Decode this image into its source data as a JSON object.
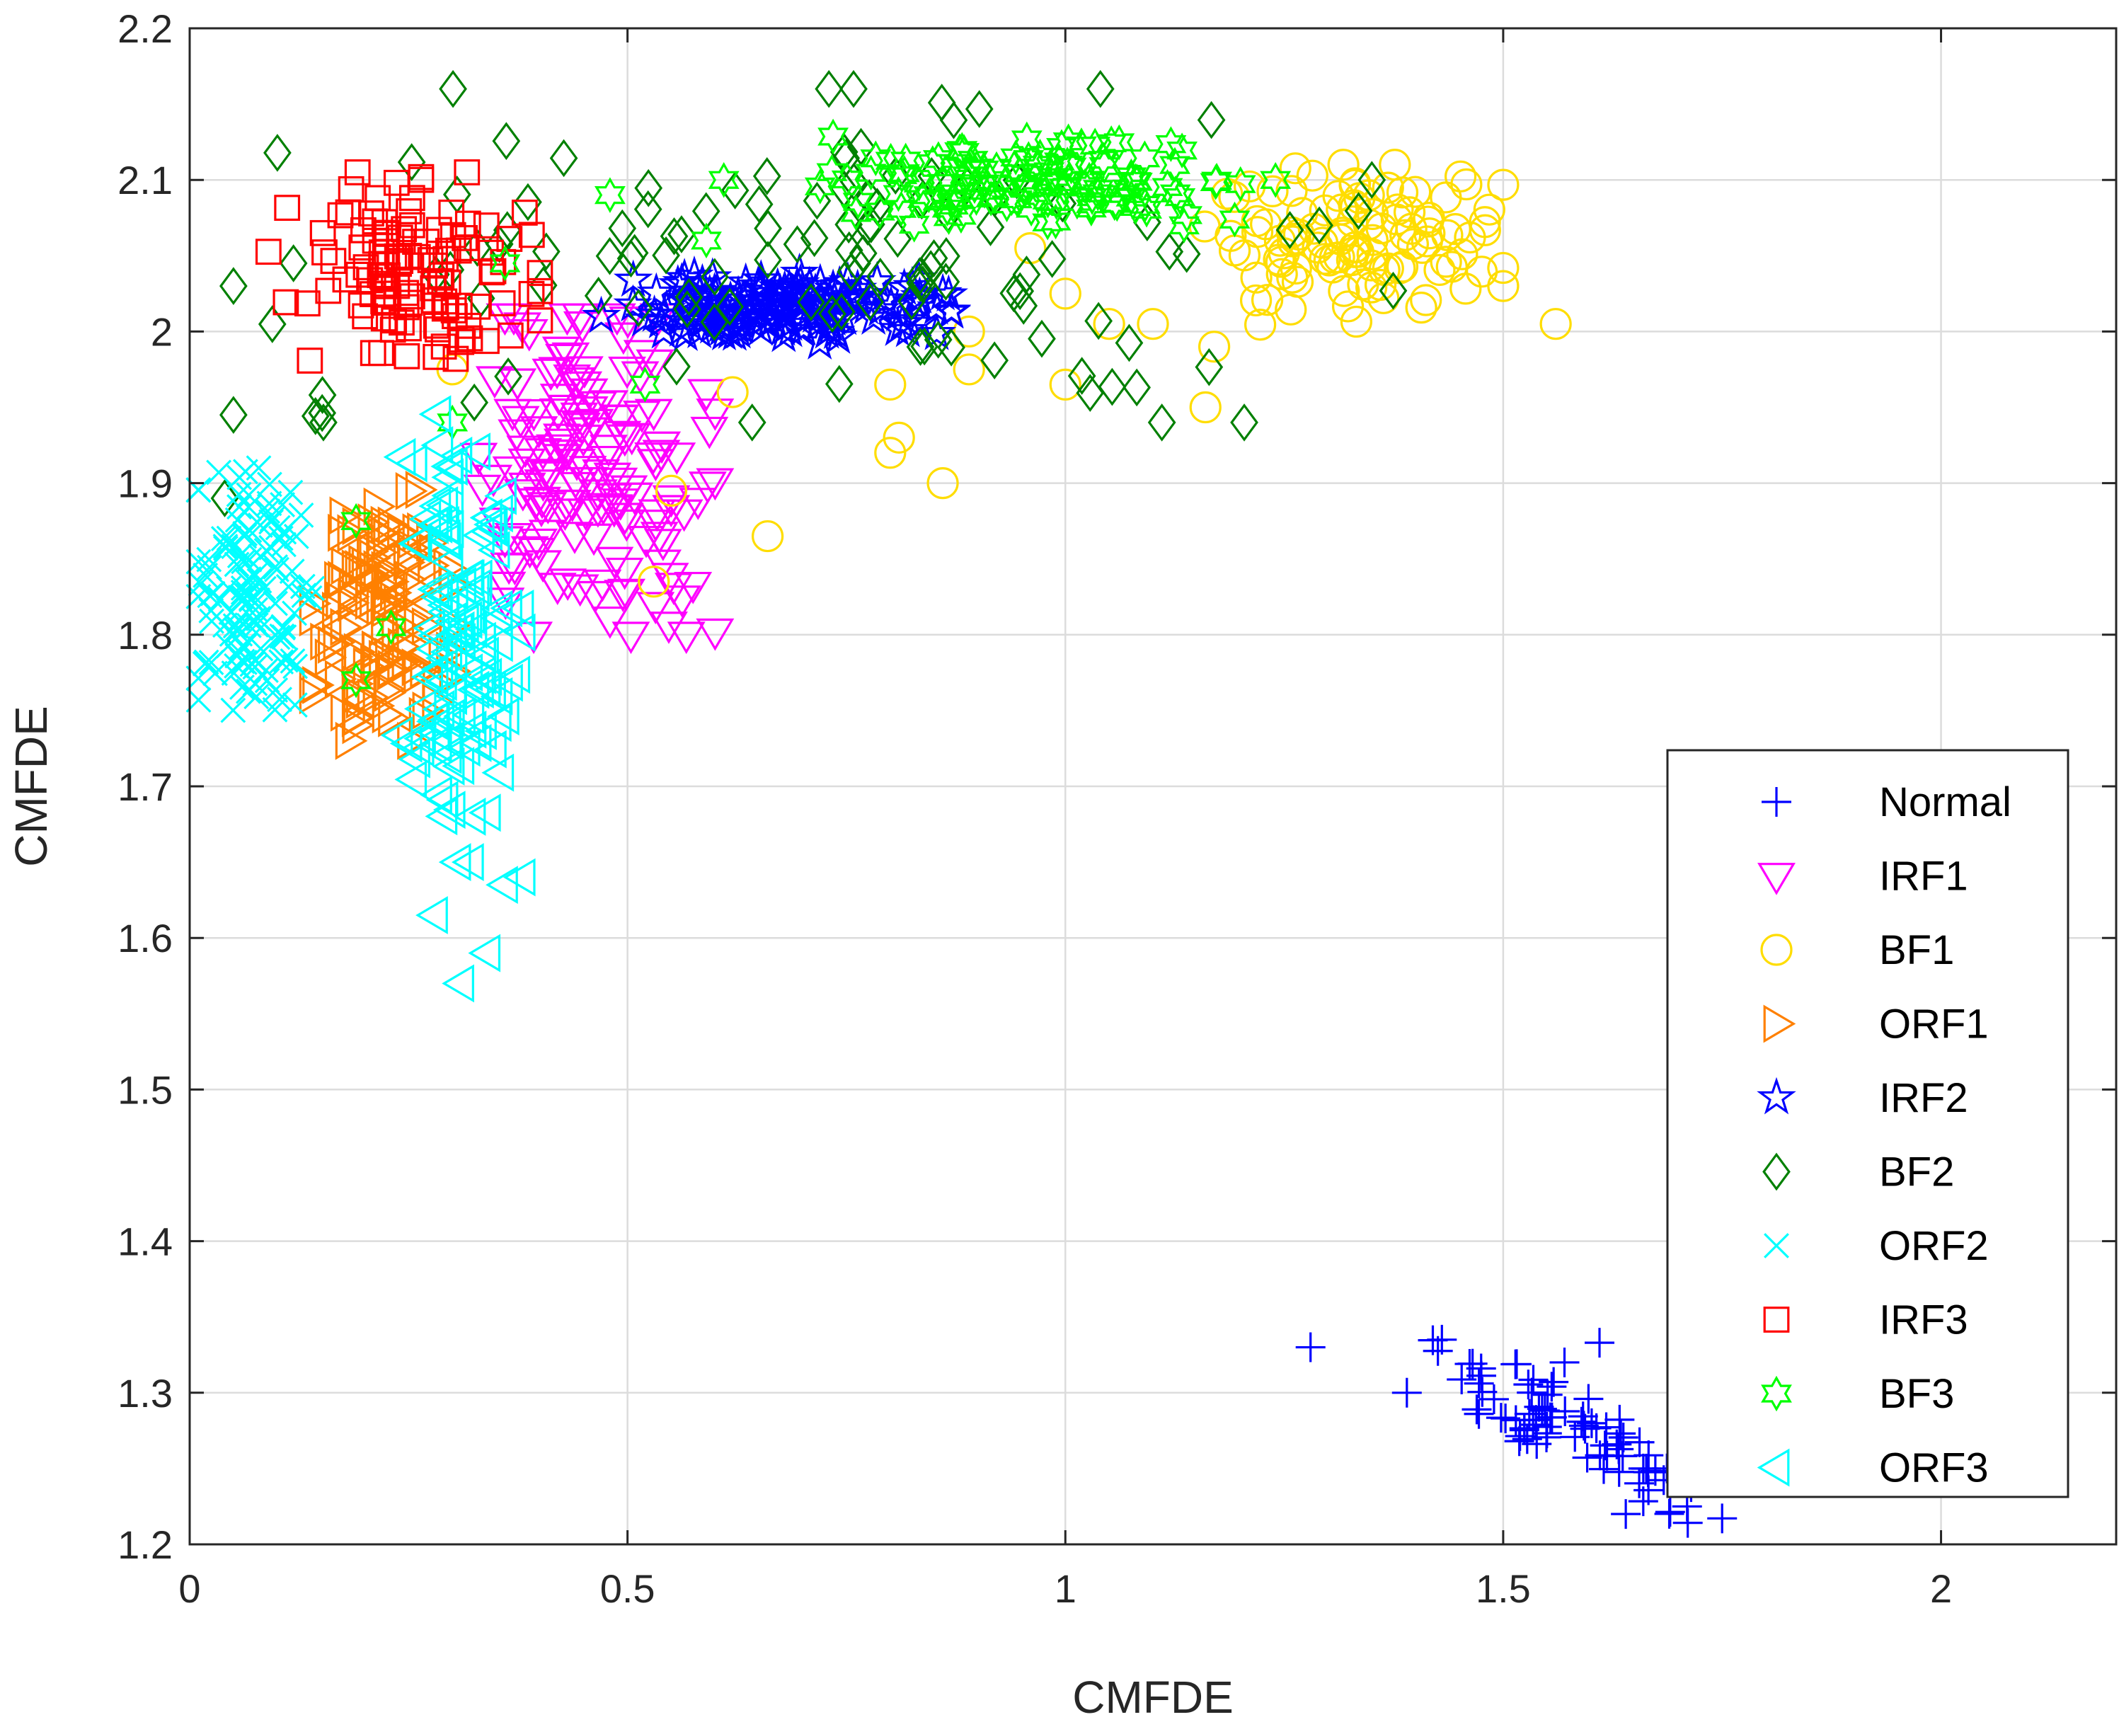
{
  "chart_data": {
    "type": "scatter",
    "title": "",
    "xlabel": "CMFDE",
    "ylabel": "CMFDE",
    "xlim": [
      0,
      2.2
    ],
    "ylim": [
      1.2,
      2.2
    ],
    "xticks": [
      "0",
      "0.5",
      "1",
      "1.5",
      "2"
    ],
    "yticks": [
      "1.2",
      "1.3",
      "1.4",
      "1.5",
      "1.6",
      "1.7",
      "1.8",
      "1.9",
      "2",
      "2.1",
      "2.2"
    ],
    "grid": true,
    "legend_position": "bottom-right",
    "series": [
      {
        "name": "Normal",
        "marker": "plus",
        "color": "#0000ff",
        "cluster": {
          "x_range": [
            1.38,
            1.75
          ],
          "y_range": [
            1.22,
            1.34
          ],
          "n": 80
        },
        "points": [
          [
            1.28,
            1.33
          ],
          [
            1.43,
            1.335
          ],
          [
            1.61,
            1.333
          ],
          [
            1.57,
            1.32
          ],
          [
            1.39,
            1.3
          ],
          [
            1.64,
            1.22
          ],
          [
            1.71,
            1.225
          ],
          [
            1.66,
            1.25
          ]
        ]
      },
      {
        "name": "IRF1",
        "marker": "triangle-down",
        "color": "#ff00ff",
        "cluster": {
          "x_range": [
            0.33,
            0.6
          ],
          "y_range": [
            1.8,
            2.01
          ],
          "n": 150
        },
        "points": [
          [
            0.48,
            1.81
          ],
          [
            0.36,
            2.01
          ],
          [
            0.59,
            1.96
          ],
          [
            0.55,
            1.89
          ]
        ]
      },
      {
        "name": "BF1",
        "marker": "circle",
        "color": "#ffdd00",
        "cluster": {
          "x_range": [
            1.15,
            1.5
          ],
          "y_range": [
            2.0,
            2.11
          ],
          "n": 110
        },
        "points": [
          [
            0.3,
            1.975
          ],
          [
            0.53,
            1.835
          ],
          [
            0.55,
            1.895
          ],
          [
            0.62,
            1.96
          ],
          [
            0.66,
            1.865
          ],
          [
            0.8,
            1.965
          ],
          [
            0.81,
            1.93
          ],
          [
            0.8,
            1.92
          ],
          [
            0.86,
            1.9
          ],
          [
            0.89,
            2.0
          ],
          [
            0.89,
            1.975
          ],
          [
            0.96,
            2.055
          ],
          [
            1.0,
            2.025
          ],
          [
            1.0,
            1.965
          ],
          [
            1.05,
            2.005
          ],
          [
            1.1,
            2.005
          ],
          [
            1.16,
            1.95
          ],
          [
            1.17,
            1.99
          ],
          [
            1.56,
            2.005
          ],
          [
            1.5,
            2.03
          ]
        ]
      },
      {
        "name": "ORF1",
        "marker": "triangle-right",
        "color": "#ff8000",
        "cluster": {
          "x_range": [
            0.14,
            0.3
          ],
          "y_range": [
            1.73,
            1.9
          ],
          "n": 120
        },
        "points": []
      },
      {
        "name": "IRF2",
        "marker": "pentagram",
        "color": "#0000ff",
        "cluster": {
          "x_range": [
            0.5,
            0.87
          ],
          "y_range": [
            1.99,
            2.04
          ],
          "n": 160
        },
        "points": [
          [
            0.47,
            2.01
          ],
          [
            0.83,
            2.02
          ],
          [
            0.86,
            2.025
          ]
        ]
      },
      {
        "name": "BF2",
        "marker": "diamond",
        "color": "#008000",
        "cluster": {
          "x_range": [
            0.05,
            1.38
          ],
          "y_range": [
            1.94,
            2.16
          ],
          "n": 120
        },
        "points": [
          [
            0.05,
            2.03
          ],
          [
            0.05,
            1.945
          ],
          [
            0.04,
            1.89
          ],
          [
            1.04,
            2.16
          ],
          [
            1.35,
            2.1
          ],
          [
            1.29,
            2.07
          ]
        ]
      },
      {
        "name": "ORF2",
        "marker": "cross",
        "color": "#00ffff",
        "cluster": {
          "x_range": [
            0.01,
            0.14
          ],
          "y_range": [
            1.75,
            1.91
          ],
          "n": 130
        },
        "points": []
      },
      {
        "name": "IRF3",
        "marker": "square",
        "color": "#ff0000",
        "cluster": {
          "x_range": [
            0.09,
            0.4
          ],
          "y_range": [
            1.97,
            2.105
          ],
          "n": 120
        },
        "points": []
      },
      {
        "name": "BF3",
        "marker": "hexagram",
        "color": "#00ff00",
        "cluster": {
          "x_range": [
            0.72,
            1.2
          ],
          "y_range": [
            2.07,
            2.13
          ],
          "n": 120
        },
        "points": [
          [
            0.48,
            2.09
          ],
          [
            0.59,
            2.06
          ],
          [
            0.61,
            2.1
          ],
          [
            0.52,
            1.965
          ],
          [
            0.3,
            1.94
          ],
          [
            0.19,
            1.875
          ],
          [
            0.19,
            1.77
          ],
          [
            0.23,
            1.805
          ],
          [
            0.36,
            2.045
          ],
          [
            1.24,
            2.1
          ]
        ]
      },
      {
        "name": "ORF3",
        "marker": "triangle-left",
        "color": "#00ffff",
        "cluster": {
          "x_range": [
            0.24,
            0.38
          ],
          "y_range": [
            1.65,
            1.95
          ],
          "n": 120
        },
        "points": [
          [
            0.28,
            1.615
          ],
          [
            0.31,
            1.57
          ],
          [
            0.34,
            1.59
          ],
          [
            0.36,
            1.635
          ],
          [
            0.38,
            1.64
          ]
        ]
      }
    ]
  }
}
